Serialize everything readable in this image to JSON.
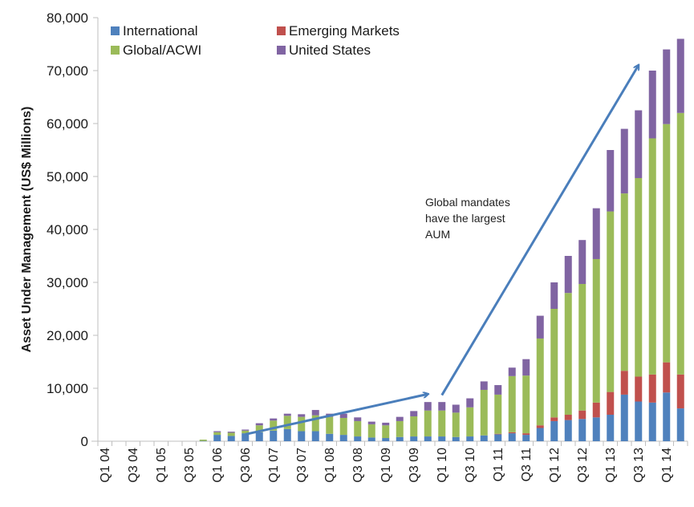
{
  "chart_data": {
    "type": "bar",
    "stacked": true,
    "title": "",
    "xlabel": "",
    "ylabel": "Asset Under Management (US$ Millions)",
    "ylim": [
      0,
      80000
    ],
    "yticks": [
      0,
      10000,
      20000,
      30000,
      40000,
      50000,
      60000,
      70000,
      80000
    ],
    "ytick_labels": [
      "0",
      "10,000",
      "20,000",
      "30,000",
      "40,000",
      "50,000",
      "60,000",
      "70,000",
      "80,000"
    ],
    "grid": false,
    "legend_position": "top-left",
    "categories": [
      "Q1 04",
      "Q2 04",
      "Q3 04",
      "Q4 04",
      "Q1 05",
      "Q2 05",
      "Q3 05",
      "Q4 05",
      "Q1 06",
      "Q2 06",
      "Q3 06",
      "Q4 06",
      "Q1 07",
      "Q2 07",
      "Q3 07",
      "Q4 07",
      "Q1 08",
      "Q2 08",
      "Q3 08",
      "Q4 08",
      "Q1 09",
      "Q2 09",
      "Q3 09",
      "Q4 09",
      "Q1 10",
      "Q2 10",
      "Q3 10",
      "Q4 10",
      "Q1 11",
      "Q2 11",
      "Q3 11",
      "Q4 11",
      "Q1 12",
      "Q2 12",
      "Q3 12",
      "Q4 12",
      "Q1 13",
      "Q2 13",
      "Q3 13",
      "Q4 13",
      "Q1 14",
      "Q2 14"
    ],
    "tick_labels_shown": [
      "Q1 04",
      "Q3 04",
      "Q1 05",
      "Q3 05",
      "Q1 06",
      "Q3 06",
      "Q1 07",
      "Q3 07",
      "Q1 08",
      "Q3 08",
      "Q1 09",
      "Q3 09",
      "Q1 10",
      "Q3 10",
      "Q1 11",
      "Q3 11",
      "Q1 12",
      "Q3 12",
      "Q1 13",
      "Q3 13",
      "Q1 14"
    ],
    "series": [
      {
        "name": "International",
        "color": "#4f81bd",
        "values": [
          0,
          0,
          0,
          0,
          0,
          0,
          0,
          50,
          1200,
          1000,
          1500,
          1700,
          2000,
          2300,
          1900,
          1900,
          1400,
          1200,
          900,
          700,
          600,
          800,
          900,
          900,
          900,
          800,
          900,
          1100,
          1300,
          1500,
          1200,
          2500,
          3800,
          4000,
          4200,
          4500,
          5000,
          8800,
          7500,
          7300,
          9200,
          6200
        ]
      },
      {
        "name": "Emerging Markets",
        "color": "#c0504d",
        "values": [
          0,
          0,
          0,
          0,
          0,
          0,
          0,
          0,
          0,
          0,
          0,
          0,
          0,
          0,
          0,
          0,
          0,
          0,
          0,
          0,
          0,
          0,
          0,
          0,
          0,
          0,
          0,
          0,
          100,
          200,
          300,
          500,
          700,
          1000,
          1600,
          2800,
          4300,
          4500,
          4700,
          5300,
          5700,
          6400
        ]
      },
      {
        "name": "Global/ACWI",
        "color": "#9bbb59",
        "values": [
          0,
          0,
          0,
          0,
          0,
          0,
          0,
          250,
          500,
          600,
          500,
          1300,
          1900,
          2500,
          2700,
          3000,
          3200,
          3200,
          2900,
          2500,
          2400,
          3000,
          3800,
          4900,
          4900,
          4600,
          5500,
          8600,
          7400,
          10600,
          10900,
          16400,
          20500,
          23000,
          23900,
          27100,
          34100,
          33500,
          37500,
          44600,
          45000,
          49400
        ]
      },
      {
        "name": "United States",
        "color": "#8064a2",
        "values": [
          0,
          0,
          0,
          0,
          0,
          0,
          0,
          0,
          200,
          200,
          200,
          400,
          400,
          400,
          500,
          1000,
          600,
          800,
          700,
          500,
          500,
          800,
          1000,
          1600,
          1600,
          1500,
          1700,
          1600,
          1800,
          1600,
          3100,
          4300,
          5000,
          7000,
          8300,
          9600,
          11600,
          12200,
          12800,
          12800,
          14100,
          14000
        ]
      }
    ],
    "annotations": [
      {
        "text_lines": [
          "Global mandates",
          "have the largest",
          "AUM"
        ]
      }
    ],
    "arrows": [
      {
        "description": "flat growth arrow",
        "from": {
          "category": "Q3 06",
          "value": 1300
        },
        "to": {
          "category": "Q4 09",
          "value": 8900
        }
      },
      {
        "description": "steep growth arrow",
        "from": {
          "category": "Q1 10",
          "value": 8700
        },
        "to": {
          "category": "Q3 13",
          "value": 71000
        }
      }
    ]
  }
}
